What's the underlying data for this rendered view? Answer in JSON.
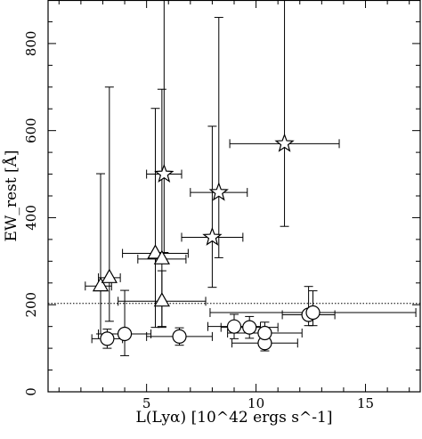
{
  "chart_data": {
    "type": "scatter",
    "xlabel": "L(Lyα) [10^42 ergs s^-1]",
    "ylabel": "EW_rest [Å]",
    "x_ticks": [
      5,
      10,
      15
    ],
    "y_ticks": [
      0,
      200,
      400,
      600,
      800
    ],
    "xlim": [
      0.5,
      17.5
    ],
    "ylim": [
      0,
      900
    ],
    "reference_line": {
      "y": 203,
      "style": "dotted"
    },
    "series": [
      {
        "marker": "triangle",
        "points": [
          {
            "x": 2.9,
            "y": 243,
            "xerr": [
              0.7,
              0.5
            ],
            "yerr": [
              110,
              258
            ]
          },
          {
            "x": 3.3,
            "y": 262,
            "xerr": [
              0.5,
              0.5
            ],
            "yerr": [
              100,
              438
            ]
          },
          {
            "x": 5.4,
            "y": 318,
            "xerr": [
              1.5,
              1.5
            ],
            "yerr": [
              170,
              333
            ]
          },
          {
            "x": 5.7,
            "y": 305,
            "xerr": [
              1.1,
              1.1
            ],
            "yerr": [
              155,
              390
            ]
          },
          {
            "x": 5.7,
            "y": 208,
            "xerr": [
              2.0,
              2.0
            ],
            "yerr": [
              60,
              70
            ]
          }
        ]
      },
      {
        "marker": "star",
        "points": [
          {
            "x": 5.8,
            "y": 500,
            "xerr": [
              0.8,
              0.8
            ],
            "yerr": [
              180,
              400
            ]
          },
          {
            "x": 8.3,
            "y": 458,
            "xerr": [
              1.3,
              1.3
            ],
            "yerr": [
              150,
              402
            ]
          },
          {
            "x": 8.0,
            "y": 355,
            "xerr": [
              1.4,
              1.4
            ],
            "yerr": [
              115,
              255
            ]
          },
          {
            "x": 11.3,
            "y": 570,
            "xerr": [
              2.5,
              2.5
            ],
            "yerr": [
              190,
              330
            ]
          }
        ]
      },
      {
        "marker": "circle",
        "points": [
          {
            "x": 3.2,
            "y": 122,
            "xerr": [
              0.7,
              0.7
            ],
            "yerr": [
              22,
              22
            ]
          },
          {
            "x": 4.0,
            "y": 133,
            "xerr": [
              1.2,
              1.2
            ],
            "yerr": [
              50,
              100
            ]
          },
          {
            "x": 6.5,
            "y": 127,
            "xerr": [
              1.5,
              1.5
            ],
            "yerr": [
              20,
              20
            ]
          },
          {
            "x": 9.0,
            "y": 150,
            "xerr": [
              1.2,
              1.2
            ],
            "yerr": [
              28,
              28
            ]
          },
          {
            "x": 9.7,
            "y": 148,
            "xerr": [
              1.3,
              1.3
            ],
            "yerr": [
              25,
              25
            ]
          },
          {
            "x": 10.4,
            "y": 112,
            "xerr": [
              1.5,
              1.5
            ],
            "yerr": [
              18,
              18
            ]
          },
          {
            "x": 10.4,
            "y": 135,
            "xerr": [
              1.7,
              1.7
            ],
            "yerr": [
              25,
              25
            ]
          },
          {
            "x": 12.4,
            "y": 177,
            "xerr": [
              1.2,
              1.2
            ],
            "yerr": [
              25,
              65
            ]
          },
          {
            "x": 12.6,
            "y": 182,
            "xerr": [
              4.7,
              4.7
            ],
            "yerr": [
              30,
              50
            ]
          }
        ]
      }
    ]
  }
}
